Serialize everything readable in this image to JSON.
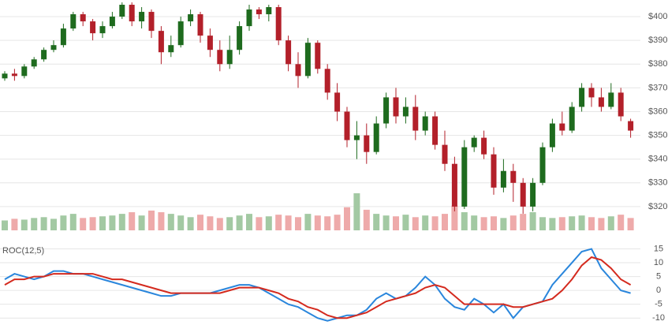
{
  "chart_data": [
    {
      "type": "candlestick",
      "open": [
        374,
        376,
        375,
        379,
        382,
        386,
        388,
        395,
        401,
        398,
        393,
        396,
        400,
        405,
        398,
        402,
        394,
        385,
        388,
        398,
        401,
        392,
        386,
        380,
        386,
        396,
        403,
        401,
        404,
        390,
        380,
        375,
        389,
        378,
        368,
        360,
        348,
        350,
        343,
        355,
        366,
        358,
        362,
        352,
        358,
        346,
        338,
        320,
        345,
        349,
        342,
        328,
        335,
        330,
        320,
        330,
        345,
        355,
        352,
        362,
        370,
        366,
        362,
        368,
        356
      ],
      "high": [
        377,
        378,
        380,
        383,
        387,
        390,
        397,
        402,
        402,
        399,
        398,
        402,
        406,
        406,
        404,
        403,
        396,
        392,
        400,
        403,
        402,
        395,
        390,
        392,
        398,
        405,
        404,
        405,
        405,
        392,
        385,
        391,
        390,
        380,
        372,
        362,
        356,
        355,
        358,
        368,
        370,
        366,
        367,
        360,
        360,
        352,
        341,
        348,
        350,
        352,
        345,
        340,
        338,
        332,
        332,
        347,
        357,
        360,
        364,
        372,
        372,
        370,
        372,
        370,
        357
      ],
      "low": [
        373,
        373,
        374,
        378,
        381,
        385,
        387,
        394,
        396,
        390,
        391,
        395,
        399,
        396,
        395,
        391,
        380,
        383,
        387,
        396,
        389,
        383,
        377,
        378,
        384,
        394,
        399,
        398,
        388,
        377,
        370,
        374,
        376,
        365,
        356,
        345,
        340,
        338,
        342,
        353,
        355,
        355,
        348,
        350,
        344,
        335,
        318,
        319,
        343,
        340,
        325,
        326,
        322,
        317,
        318,
        329,
        343,
        350,
        351,
        360,
        362,
        360,
        361,
        356,
        349
      ],
      "close": [
        376,
        375,
        379,
        382,
        386,
        388,
        395,
        401,
        398,
        393,
        396,
        400,
        405,
        398,
        402,
        394,
        385,
        388,
        398,
        401,
        392,
        386,
        380,
        386,
        396,
        403,
        401,
        404,
        390,
        380,
        375,
        389,
        378,
        368,
        360,
        348,
        350,
        343,
        355,
        366,
        358,
        362,
        352,
        358,
        346,
        338,
        320,
        345,
        349,
        342,
        328,
        335,
        330,
        320,
        330,
        345,
        355,
        352,
        362,
        370,
        366,
        362,
        368,
        358,
        352
      ],
      "volume": [
        12,
        14,
        13,
        15,
        16,
        14,
        18,
        20,
        15,
        16,
        17,
        18,
        20,
        22,
        18,
        24,
        22,
        20,
        18,
        16,
        19,
        17,
        15,
        16,
        18,
        20,
        16,
        17,
        19,
        18,
        16,
        20,
        18,
        17,
        19,
        28,
        45,
        25,
        20,
        18,
        17,
        19,
        16,
        18,
        17,
        20,
        30,
        22,
        18,
        16,
        17,
        15,
        18,
        20,
        22,
        16,
        15,
        16,
        17,
        18,
        16,
        15,
        17,
        19,
        15
      ],
      "up_color": "#1e6b1e",
      "down_color": "#b3202a",
      "up_volume_color": "#a3c9a3",
      "down_volume_color": "#eeaaaa",
      "ylim": [
        310,
        407
      ],
      "yticks": [
        {
          "value": 320,
          "label": "$320"
        },
        {
          "value": 330,
          "label": "$330"
        },
        {
          "value": 340,
          "label": "$340"
        },
        {
          "value": 350,
          "label": "$350"
        },
        {
          "value": 360,
          "label": "$360"
        },
        {
          "value": 370,
          "label": "$370"
        },
        {
          "value": 380,
          "label": "$380"
        },
        {
          "value": 390,
          "label": "$390"
        },
        {
          "value": 400,
          "label": "$400"
        }
      ],
      "grid": true
    },
    {
      "type": "line",
      "title": "ROC(12,5)",
      "series": [
        {
          "color": "#2a86dc",
          "values": [
            4,
            6,
            5,
            4,
            5,
            7,
            7,
            6,
            6,
            5,
            4,
            3,
            2,
            1,
            0,
            -1,
            -2,
            -2,
            -1,
            -1,
            -1,
            -1,
            0,
            1,
            2,
            2,
            1,
            -1,
            -3,
            -5,
            -6,
            -8,
            -10,
            -11,
            -10,
            -9,
            -9,
            -7,
            -3,
            -1,
            -3,
            -2,
            1,
            5,
            2,
            -3,
            -6,
            -7,
            -3,
            -5,
            -8,
            -5,
            -10,
            -6,
            -5,
            -4,
            2,
            6,
            10,
            14,
            15,
            8,
            4,
            0,
            -1
          ]
        },
        {
          "color": "#d42a1e",
          "values": [
            2,
            4,
            4,
            5,
            5,
            6,
            6,
            6,
            6,
            6,
            5,
            4,
            4,
            3,
            2,
            1,
            0,
            -1,
            -1,
            -1,
            -1,
            -1,
            -1,
            0,
            1,
            1,
            1,
            0,
            -1,
            -3,
            -4,
            -6,
            -7,
            -9,
            -10,
            -10,
            -9,
            -8,
            -6,
            -4,
            -3,
            -2,
            -1,
            1,
            2,
            1,
            -2,
            -5,
            -5,
            -5,
            -5,
            -5,
            -6,
            -6,
            -5,
            -4,
            -3,
            0,
            4,
            9,
            12,
            11,
            8,
            4,
            2
          ]
        }
      ],
      "ylim": [
        -12.5,
        16
      ],
      "yticks": [
        -10,
        -5,
        0,
        5,
        10,
        15
      ],
      "grid": true
    }
  ]
}
